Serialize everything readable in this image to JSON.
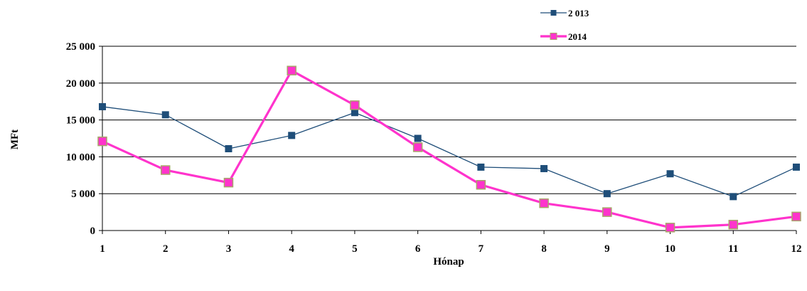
{
  "chart_data": {
    "type": "line",
    "title": "",
    "xlabel": "Hónap",
    "ylabel": "MFt",
    "x": [
      1,
      2,
      3,
      4,
      5,
      6,
      7,
      8,
      9,
      10,
      11,
      12
    ],
    "x_tick_labels": [
      "1",
      "2",
      "3",
      "4",
      "5",
      "6",
      "7",
      "8",
      "9",
      "10",
      "11",
      "12"
    ],
    "ylim": [
      0,
      25000
    ],
    "y_tick_values": [
      0,
      5000,
      10000,
      15000,
      20000,
      25000
    ],
    "y_tick_labels": [
      "0",
      "5 000",
      "10 000",
      "15 000",
      "20 000",
      "25 000"
    ],
    "grid": "horizontal",
    "legend_position": "top-right",
    "series": [
      {
        "name": "2 013",
        "color": "#1f4e79",
        "marker": "square",
        "values": [
          16800,
          15700,
          11100,
          12900,
          16000,
          12500,
          8600,
          8400,
          5000,
          7700,
          4600,
          8600
        ]
      },
      {
        "name": "2014",
        "color": "#ff33cc",
        "marker": "square",
        "marker_edge": "#a8a56a",
        "values": [
          12100,
          8200,
          6500,
          21700,
          17000,
          11300,
          6200,
          3700,
          2500,
          400,
          800,
          1900
        ]
      }
    ]
  }
}
